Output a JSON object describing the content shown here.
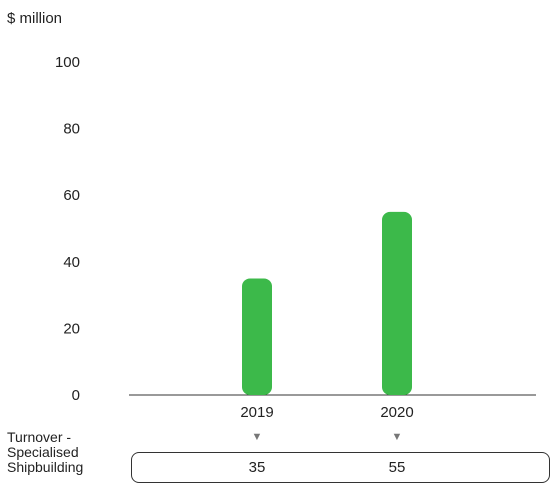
{
  "chart_data": {
    "type": "bar",
    "ylabel": "$ million",
    "categories": [
      "2019",
      "2020"
    ],
    "series": [
      {
        "values": [
          35,
          55
        ]
      }
    ],
    "ylim": [
      0,
      100
    ],
    "yticks": [
      "0",
      "20",
      "40",
      "60",
      "80",
      "100"
    ],
    "grid": false,
    "bar_color": "#3cb94a",
    "data_table": {
      "row_label": "Turnover - Specialised Shipbuilding",
      "values": [
        "35",
        "55"
      ]
    }
  },
  "icons": {
    "pointer": "▼",
    "pointer_name": "triangle-down-icon"
  }
}
